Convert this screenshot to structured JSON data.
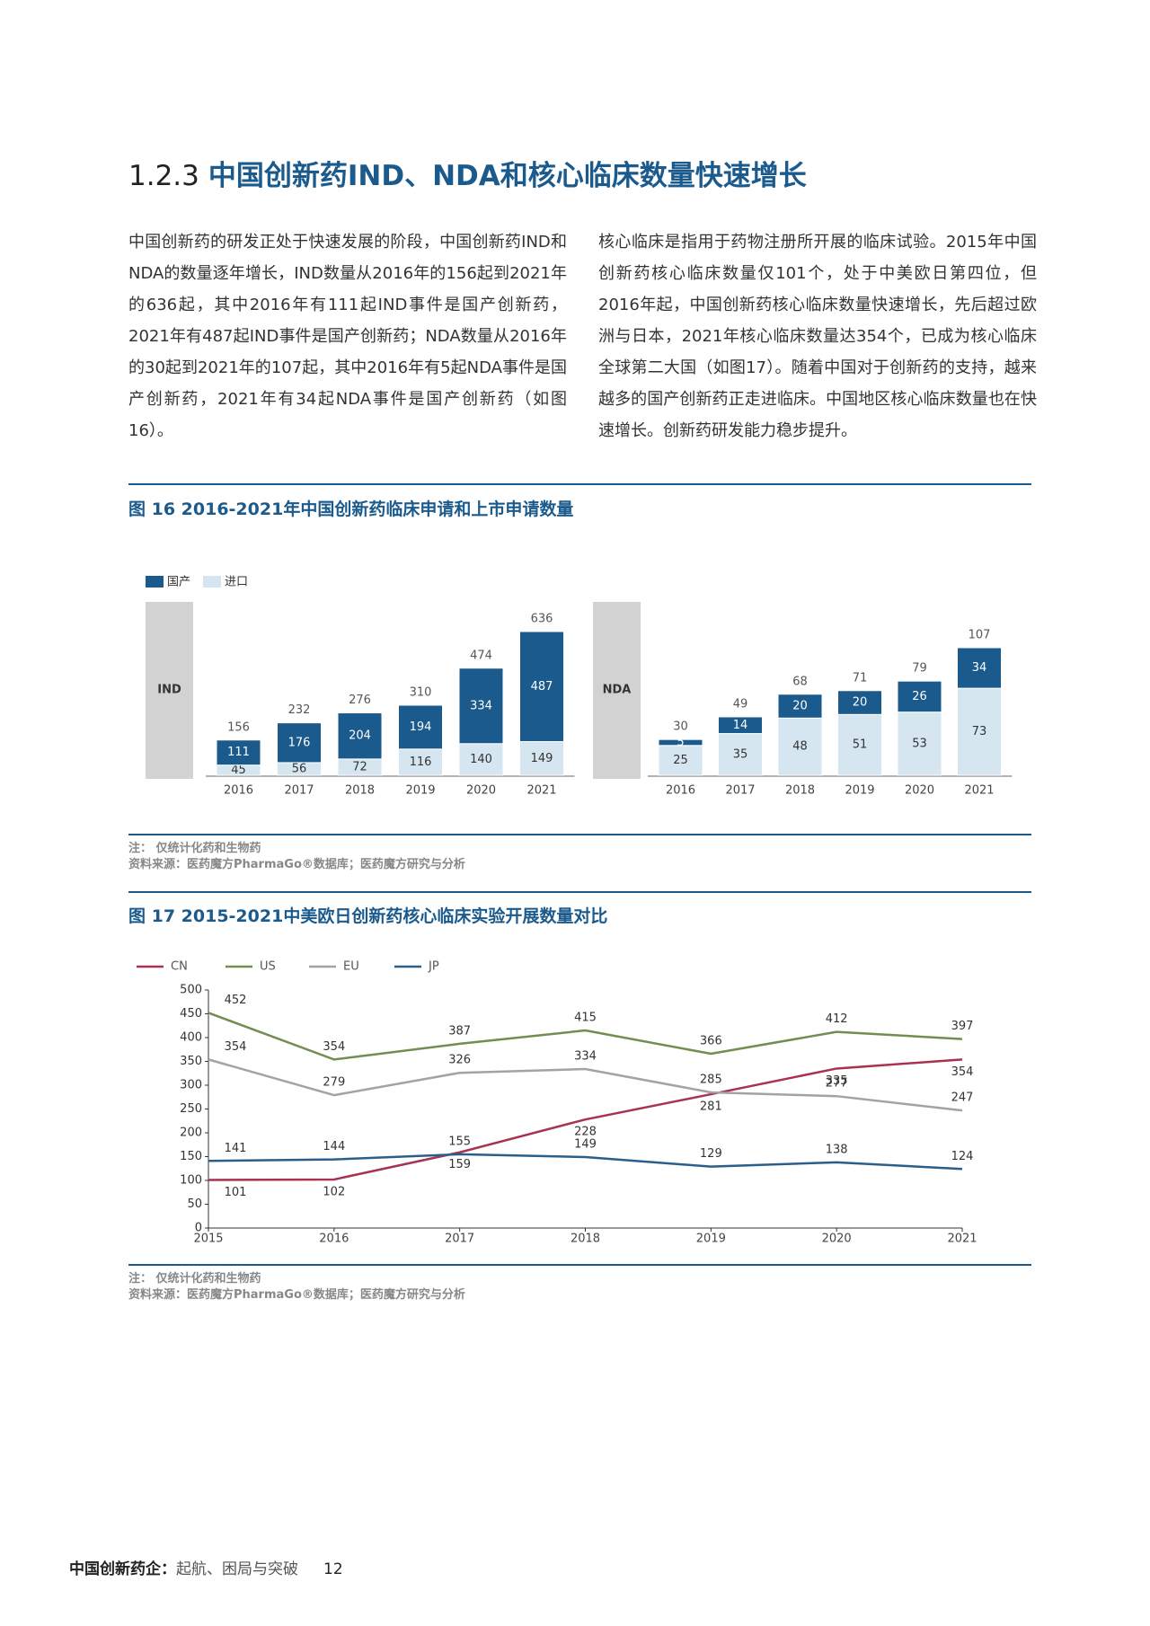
{
  "heading": {
    "number": "1.2.3",
    "title": "中国创新药IND、NDA和核心临床数量快速增长"
  },
  "paragraphs": [
    "中国创新药的研发正处于快速发展的阶段，中国创新药IND和NDA的数量逐年增长，IND数量从2016年的156起到2021年的636起，其中2016年有111起IND事件是国产创新药，2021年有487起IND事件是国产创新药；NDA数量从2016年的30起到2021年的107起，其中2016年有5起NDA事件是国产创新药，2021年有34起NDA事件是国产创新药（如图16）。",
    "核心临床是指用于药物注册所开展的临床试验。2015年中国创新药核心临床数量仅101个，处于中美欧日第四位，但2016年起，中国创新药核心临床数量快速增长，先后超过欧洲与日本，2021年核心临床数量达354个，已成为核心临床全球第二大国（如图17）。随着中国对于创新药的支持，越来越多的国产创新药正走进临床。中国地区核心临床数量也在快速增长。创新药研发能力稳步提升。"
  ],
  "figures": [
    {
      "title": "图 16  2016-2021年中国创新药临床申请和上市申请数量",
      "note": "注：  仅统计化药和生物药",
      "source": "资料来源：医药魔方PharmaGo®数据库；医药魔方研究与分析"
    },
    {
      "title": "图 17 2015-2021中美欧日创新药核心临床实验开展数量对比",
      "note": "注：  仅统计化药和生物药",
      "source": "资料来源：医药魔方PharmaGo®数据库；医药魔方研究与分析"
    }
  ],
  "chart_data": [
    {
      "type": "bar",
      "stacked": true,
      "series": [
        {
          "name": "国产",
          "color": "#1b5a8c"
        },
        {
          "name": "进口",
          "color": "#d5e6f1"
        }
      ],
      "panels": [
        {
          "label": "IND",
          "categories": [
            "2016",
            "2017",
            "2018",
            "2019",
            "2020",
            "2021"
          ],
          "values": [
            [
              111,
              176,
              204,
              194,
              334,
              487
            ],
            [
              45,
              56,
              72,
              116,
              140,
              149
            ]
          ],
          "totals": [
            156,
            232,
            276,
            310,
            474,
            636
          ]
        },
        {
          "label": "NDA",
          "categories": [
            "2016",
            "2017",
            "2018",
            "2019",
            "2020",
            "2021"
          ],
          "values": [
            [
              5,
              14,
              20,
              20,
              26,
              34
            ],
            [
              25,
              35,
              48,
              51,
              53,
              73
            ]
          ],
          "totals": [
            30,
            49,
            68,
            71,
            79,
            107
          ]
        }
      ]
    },
    {
      "type": "line",
      "x": [
        2015,
        2016,
        2017,
        2018,
        2019,
        2020,
        2021
      ],
      "xticks": [
        2015,
        2016,
        2017,
        2018,
        2019,
        2020,
        2021
      ],
      "ylim": [
        0,
        500
      ],
      "yticks": [
        0,
        50,
        100,
        150,
        200,
        250,
        300,
        350,
        400,
        450,
        500
      ],
      "series": [
        {
          "name": "CN",
          "color": "#a83250",
          "values": [
            101,
            102,
            159,
            228,
            281,
            335,
            354
          ]
        },
        {
          "name": "US",
          "color": "#718d4f",
          "values": [
            452,
            354,
            387,
            415,
            366,
            412,
            397
          ]
        },
        {
          "name": "EU",
          "color": "#a3a3a3",
          "values": [
            354,
            279,
            326,
            334,
            285,
            277,
            247
          ]
        },
        {
          "name": "JP",
          "color": "#2a5f8c",
          "values": [
            141,
            144,
            155,
            149,
            129,
            138,
            124
          ]
        }
      ]
    }
  ],
  "footer": {
    "title": "中国创新药企：",
    "subtitle": "起航、困局与突破",
    "page": "12"
  }
}
